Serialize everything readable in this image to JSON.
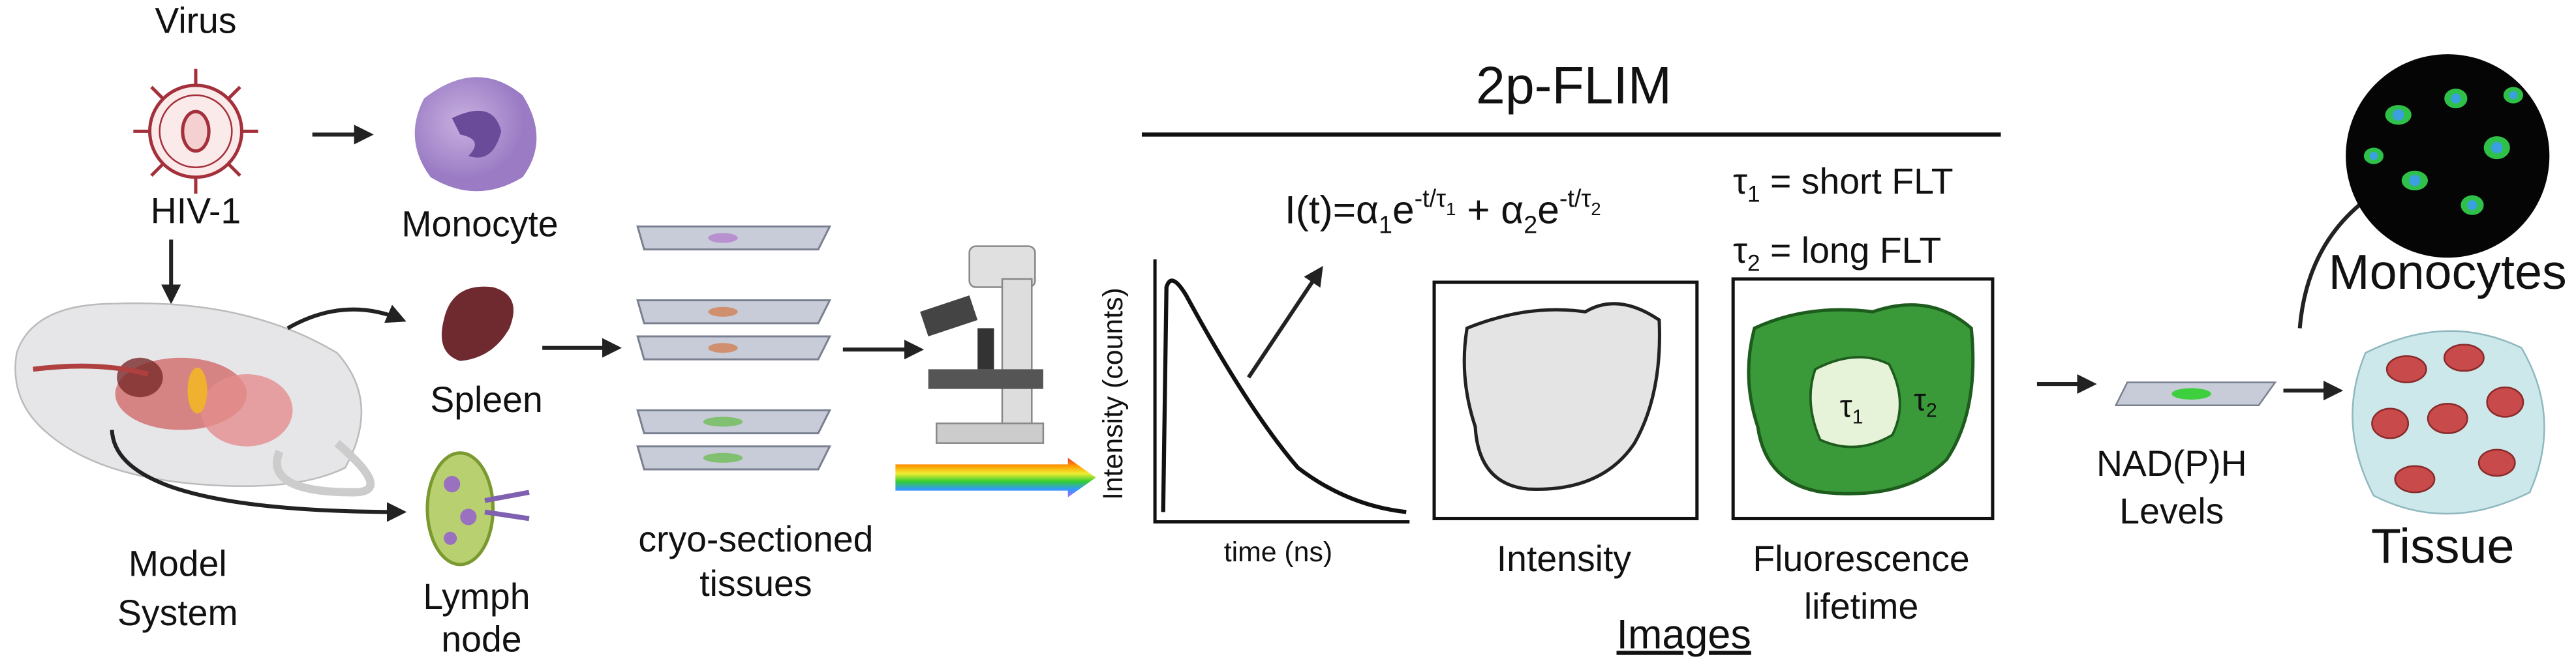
{
  "virus": {
    "title": "Virus",
    "label": "HIV-1"
  },
  "monocyte": "Monocyte",
  "spleen": "Spleen",
  "lymph_node": [
    "Lymph",
    "node"
  ],
  "model_system": [
    "Model",
    "System"
  ],
  "tissues": [
    "cryo-sectioned",
    "tissues"
  ],
  "flim": {
    "title": "2p-FLIM",
    "formula": {
      "lhs": "I(t)=α",
      "sub1": "1",
      "e1": "e",
      "exp1": "-t/τ",
      "expsub1": "1",
      "mid": " + α",
      "sub2": "2",
      "e2": "e",
      "exp2": "-t/τ",
      "expsub2": "2"
    },
    "legend": [
      {
        "symbol": "τ",
        "sub": "1",
        "text": " = short FLT"
      },
      {
        "symbol": "τ",
        "sub": "2",
        "text": " = long FLT"
      }
    ],
    "graph": {
      "y_label": "Intensity (counts)",
      "x_label": "time (ns)"
    },
    "intensity": "Intensity",
    "lifetime": {
      "label": [
        "Fluorescence",
        "lifetime"
      ],
      "inner": {
        "symbol": "τ",
        "sub": "1"
      },
      "outer": {
        "symbol": "τ",
        "sub": "2"
      }
    },
    "images": "Images"
  },
  "nadph": [
    "NAD(P)H",
    "Levels"
  ],
  "monocytes": "Monocytes",
  "tissue": "Tissue"
}
